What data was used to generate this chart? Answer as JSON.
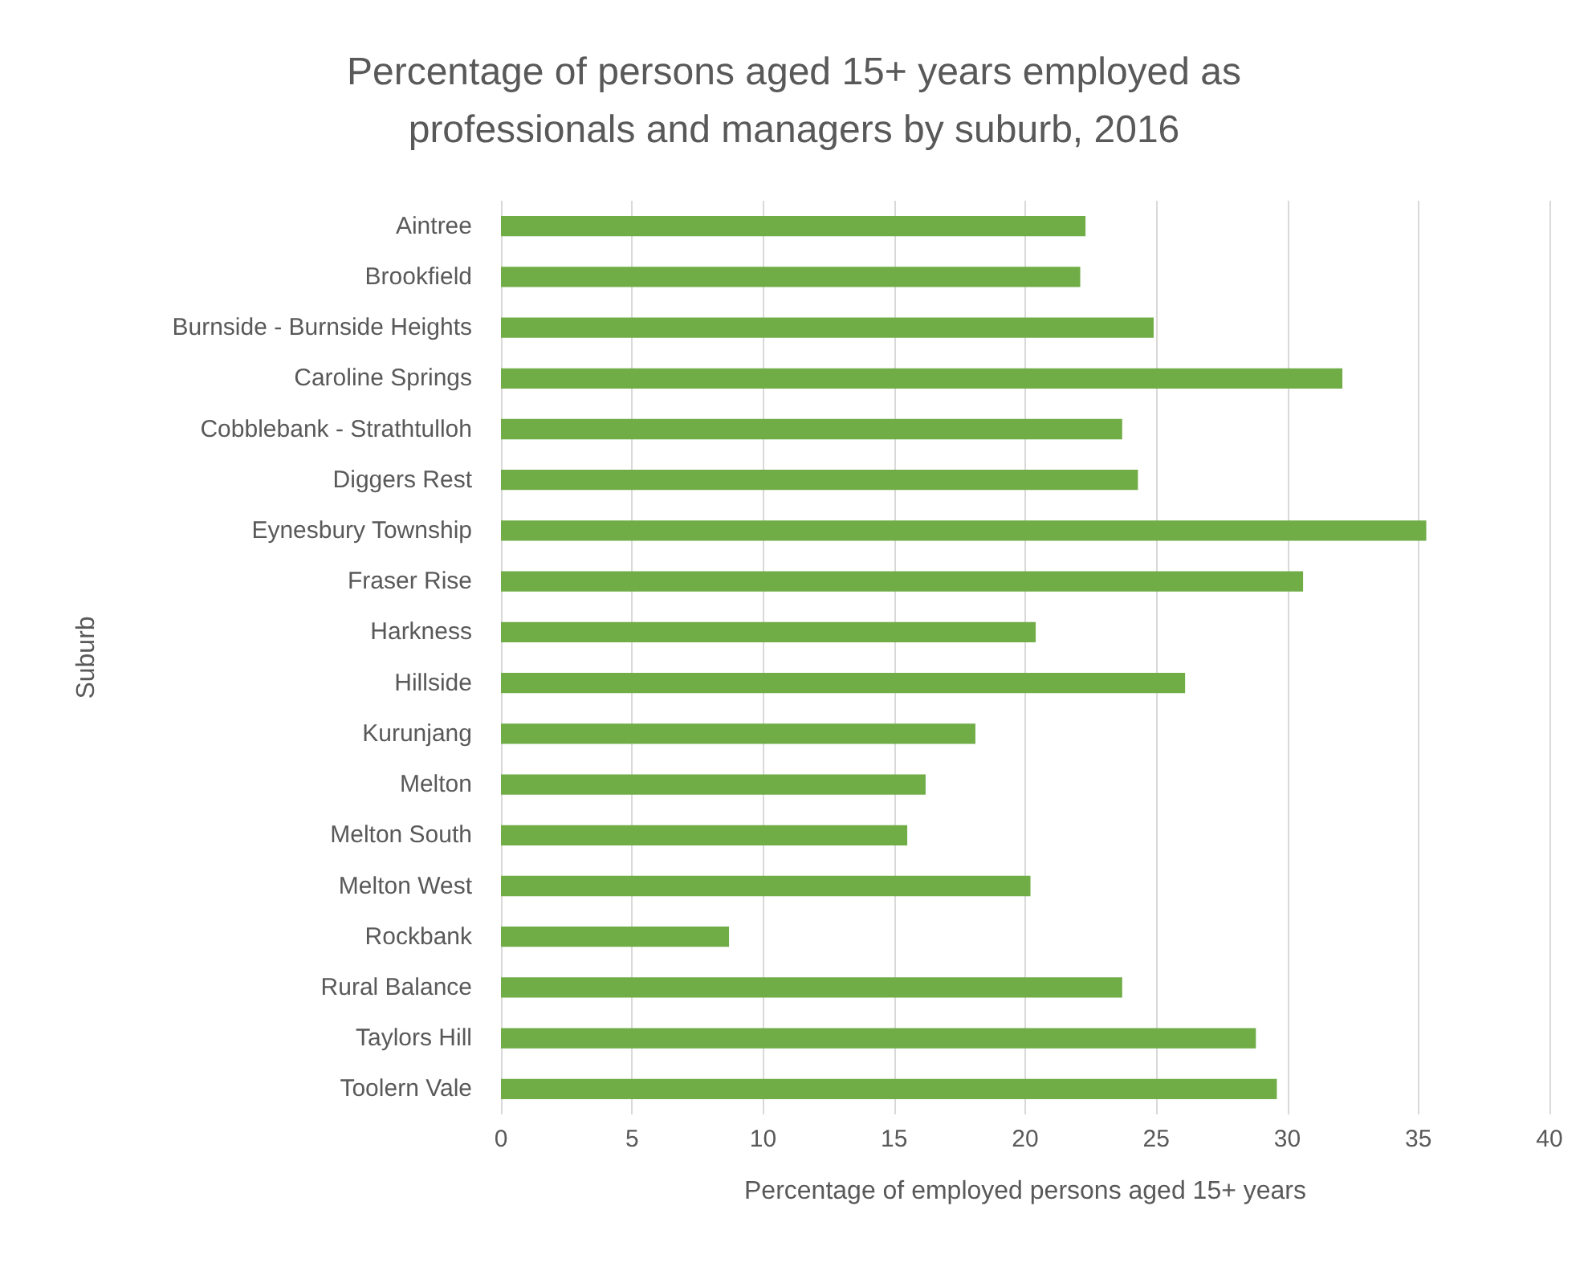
{
  "chart_data": {
    "type": "bar",
    "orientation": "horizontal",
    "title": "Percentage of persons aged 15+ years employed as\nprofessionals and managers by suburb, 2016",
    "xlabel": "Percentage of employed persons aged 15+ years",
    "ylabel": "Suburb",
    "categories": [
      "Aintree",
      "Brookfield",
      "Burnside - Burnside Heights",
      "Caroline Springs",
      "Cobblebank - Strathtulloh",
      "Diggers Rest",
      "Eynesbury Township",
      "Fraser Rise",
      "Harkness",
      "Hillside",
      "Kurunjang",
      "Melton",
      "Melton South",
      "Melton West",
      "Rockbank",
      "Rural Balance",
      "Taylors Hill",
      "Toolern Vale"
    ],
    "values": [
      22.3,
      22.1,
      24.9,
      32.1,
      23.7,
      24.3,
      35.3,
      30.6,
      20.4,
      26.1,
      18.1,
      16.2,
      15.5,
      20.2,
      8.7,
      23.7,
      28.8,
      29.6
    ],
    "color": "#70ad47",
    "xlim": [
      0,
      40
    ],
    "xticks": [
      0,
      5,
      10,
      15,
      20,
      25,
      30,
      35,
      40
    ],
    "grid": "x"
  }
}
